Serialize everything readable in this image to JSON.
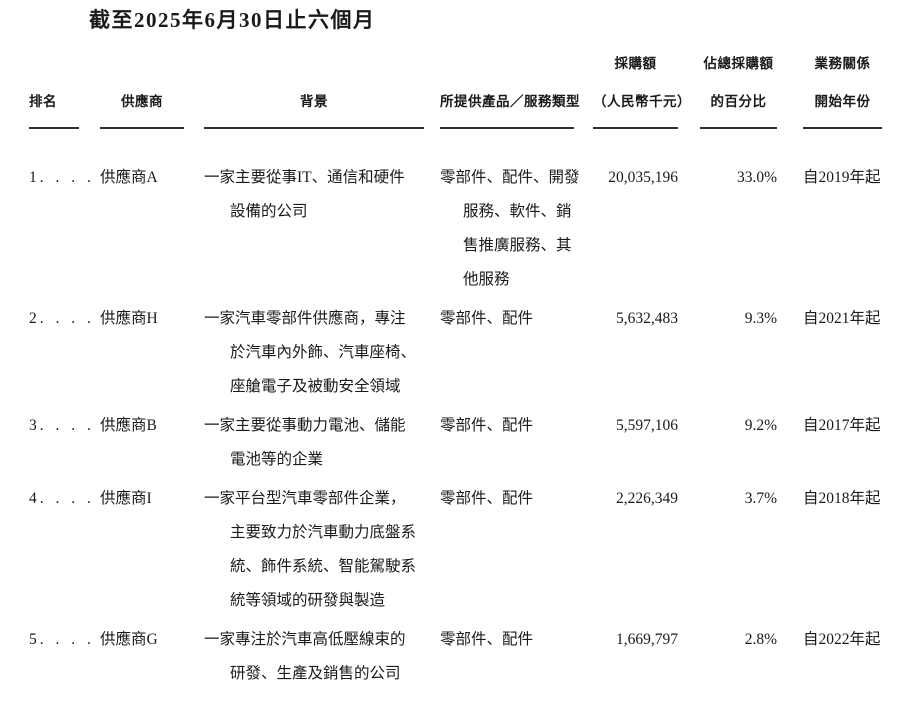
{
  "title": "截至2025年6月30日止六個月",
  "colors": {
    "text": "#1a1a1a",
    "rule": "#2d2d2d",
    "background": "#ffffff"
  },
  "table": {
    "headers": {
      "rank": "排名",
      "supplier": "供應商",
      "background": "背景",
      "products": "所提供產品／服務類型",
      "amount_line1": "採購額",
      "amount_line2": "（人民幣千元）",
      "percent_line1": "佔總採購額",
      "percent_line2": "的百分比",
      "year_line1": "業務關係",
      "year_line2": "開始年份"
    },
    "rows": [
      {
        "rank": "1",
        "rank_dots": ". . . .",
        "supplier": "供應商A",
        "background_lines": [
          "一家主要從事IT、通信和硬件",
          "設備的公司"
        ],
        "products_lines": [
          "零部件、配件、開發",
          "服務、軟件、銷",
          "售推廣服務、其",
          "他服務"
        ],
        "amount": "20,035,196",
        "percent": "33.0%",
        "since": "自2019年起"
      },
      {
        "rank": "2",
        "rank_dots": ". . . .",
        "supplier": "供應商H",
        "background_lines": [
          "一家汽車零部件供應商，專注",
          "於汽車內外飾、汽車座椅、",
          "座艙電子及被動安全領域"
        ],
        "products_lines": [
          "零部件、配件"
        ],
        "amount": "5,632,483",
        "percent": "9.3%",
        "since": "自2021年起"
      },
      {
        "rank": "3",
        "rank_dots": ". . . .",
        "supplier": "供應商B",
        "background_lines": [
          "一家主要從事動力電池、儲能",
          "電池等的企業"
        ],
        "products_lines": [
          "零部件、配件"
        ],
        "amount": "5,597,106",
        "percent": "9.2%",
        "since": "自2017年起"
      },
      {
        "rank": "4",
        "rank_dots": ". . . .",
        "supplier": "供應商I",
        "background_lines": [
          "一家平台型汽車零部件企業，",
          "主要致力於汽車動力底盤系",
          "統、飾件系統、智能駕駛系",
          "統等領域的研發與製造"
        ],
        "products_lines": [
          "零部件、配件"
        ],
        "amount": "2,226,349",
        "percent": "3.7%",
        "since": "自2018年起"
      },
      {
        "rank": "5",
        "rank_dots": ". . . .",
        "supplier": "供應商G",
        "background_lines": [
          "一家專注於汽車高低壓線束的",
          "研發、生產及銷售的公司"
        ],
        "products_lines": [
          "零部件、配件"
        ],
        "amount": "1,669,797",
        "percent": "2.8%",
        "since": "自2022年起"
      }
    ]
  }
}
